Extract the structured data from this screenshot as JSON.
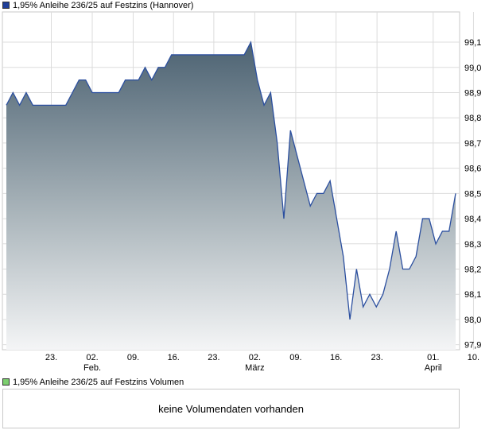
{
  "legend": {
    "price_label": "1,95% Anleihe 236/25 auf Festzins (Hannover)",
    "price_color": "#1f3f99",
    "volume_label": "1,95% Anleihe 236/25 auf Festzins Volumen",
    "volume_color": "#7ccf6f"
  },
  "volume": {
    "message": "keine Volumendaten vorhanden"
  },
  "chart_data": {
    "type": "area",
    "title": "1,95% Anleihe 236/25 auf Festzins (Hannover)",
    "xlabel": "",
    "ylabel": "",
    "ylim": [
      97.88,
      99.22
    ],
    "y_ticks": [
      "99,1",
      "99,0",
      "98,9",
      "98,8",
      "98,7",
      "98,6",
      "98,5",
      "98,4",
      "98,3",
      "98,2",
      "98,1",
      "98,0",
      "97,9"
    ],
    "y_tick_values": [
      99.1,
      99.0,
      98.9,
      98.8,
      98.7,
      98.6,
      98.5,
      98.4,
      98.3,
      98.2,
      98.1,
      98.0,
      97.9
    ],
    "x_ticks": [
      {
        "label": "23.",
        "month": "",
        "i": 6.8
      },
      {
        "label": "02.",
        "month": "Feb.",
        "i": 13.0
      },
      {
        "label": "09.",
        "month": "",
        "i": 19.2
      },
      {
        "label": "16.",
        "month": "",
        "i": 25.3
      },
      {
        "label": "23.",
        "month": "",
        "i": 31.4
      },
      {
        "label": "02.",
        "month": "März",
        "i": 37.6
      },
      {
        "label": "09.",
        "month": "",
        "i": 43.8
      },
      {
        "label": "16.",
        "month": "",
        "i": 49.9
      },
      {
        "label": "23.",
        "month": "",
        "i": 56.1
      },
      {
        "label": "01.",
        "month": "April",
        "i": 64.6
      },
      {
        "label": "10.",
        "month": "",
        "i": 70.7
      }
    ],
    "grid": true,
    "series": [
      {
        "line_color": "#2b4f9f",
        "values": [
          98.85,
          98.9,
          98.85,
          98.9,
          98.85,
          98.85,
          98.85,
          98.85,
          98.85,
          98.85,
          98.9,
          98.95,
          98.95,
          98.9,
          98.9,
          98.9,
          98.9,
          98.9,
          98.95,
          98.95,
          98.95,
          99.0,
          98.95,
          99.0,
          99.0,
          99.05,
          99.05,
          99.05,
          99.05,
          99.05,
          99.05,
          99.05,
          99.05,
          99.05,
          99.05,
          99.05,
          99.05,
          99.1,
          98.95,
          98.85,
          98.9,
          98.7,
          98.4,
          98.75,
          98.65,
          98.55,
          98.45,
          98.5,
          98.5,
          98.55,
          98.4,
          98.25,
          98.0,
          98.2,
          98.05,
          98.1,
          98.05,
          98.1,
          98.2,
          98.35,
          98.2,
          98.2,
          98.25,
          98.4,
          98.4,
          98.3,
          98.35,
          98.35,
          98.5
        ]
      }
    ]
  }
}
